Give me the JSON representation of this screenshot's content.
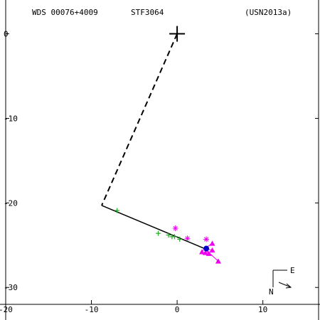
{
  "header": {
    "wds_id": "WDS 00076+4009",
    "discoverer": "STF3064",
    "reference": "(USN2013a)"
  },
  "compass": {
    "east_label": "E",
    "north_label": "N"
  },
  "chart_data": {
    "type": "scatter",
    "xlim": [
      -20,
      16.5
    ],
    "ylim": [
      -32,
      4
    ],
    "x_ticks": [
      -20,
      -10,
      0,
      10
    ],
    "x_tick_labels": [
      "-20",
      "-10",
      "0",
      "10"
    ],
    "y_ticks": [
      0,
      -10,
      -20,
      -30
    ],
    "y_tick_labels": [
      "0",
      "-10",
      "-20",
      "-30"
    ],
    "grid": false,
    "colors": {
      "axis": "#000000",
      "green": "#22aa22",
      "magenta": "#ee00ee",
      "blue": "#0000cc"
    },
    "primary_star": {
      "x": 0,
      "y": 0
    },
    "periastron_line": {
      "x1": 0,
      "y1": 0,
      "x2": -8.8,
      "y2": -20.3
    },
    "orbit_arc": {
      "x1": -8.8,
      "y1": -20.3,
      "x2": 3.2,
      "y2": -25.4
    },
    "green_plus": [
      {
        "x": -7.0,
        "y": -20.9
      },
      {
        "x": -2.2,
        "y": -23.6
      },
      {
        "x": -1.0,
        "y": -23.8
      },
      {
        "x": -0.6,
        "y": -24.0
      },
      {
        "x": -0.3,
        "y": -24.0
      },
      {
        "x": 0.3,
        "y": -24.3
      }
    ],
    "magenta_asterisk": [
      {
        "x": -0.2,
        "y": -23.0
      },
      {
        "x": 1.2,
        "y": -24.2
      },
      {
        "x": 3.4,
        "y": -24.3
      }
    ],
    "magenta_triangle": [
      {
        "x": 2.9,
        "y": -25.8
      },
      {
        "x": 3.3,
        "y": -25.9
      },
      {
        "x": 3.7,
        "y": -26.0
      },
      {
        "x": 4.1,
        "y": -24.8
      },
      {
        "x": 4.1,
        "y": -25.6
      },
      {
        "x": 4.8,
        "y": -26.9
      }
    ],
    "blue_circle": [
      {
        "x": 3.4,
        "y": -25.4
      }
    ]
  }
}
